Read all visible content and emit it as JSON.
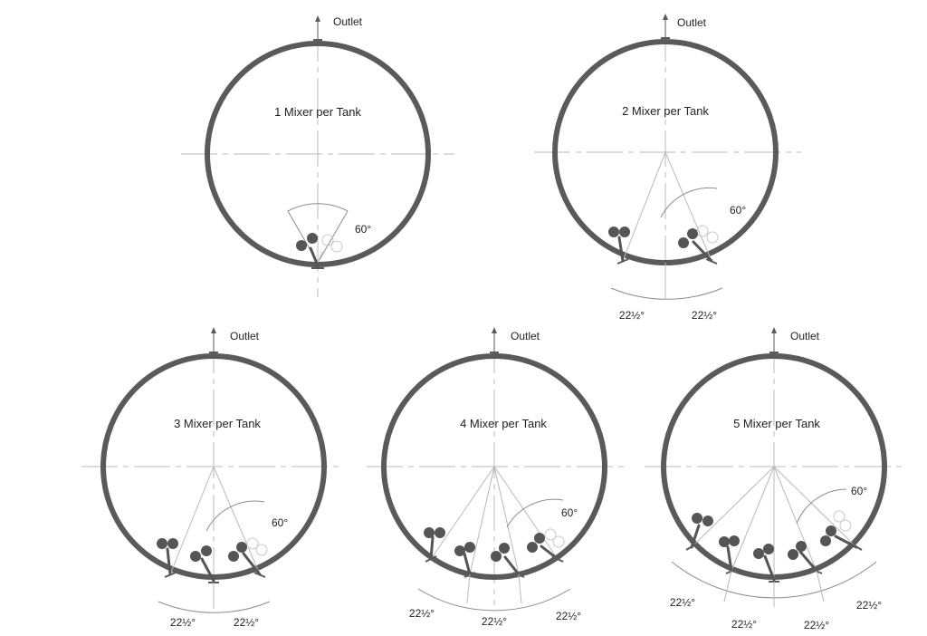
{
  "colors": {
    "tank": "#5a5a5a",
    "construction": "#b9b9b9",
    "arc": "#8c8c8c",
    "mixer": "#555555",
    "ghost": "#c8c8c8",
    "text": "#222222"
  },
  "tanks": [
    {
      "title": "1 Mixer per Tank",
      "outlet_label": "Outlet",
      "swing_label": "60°",
      "spacing_labels": []
    },
    {
      "title": "2 Mixer per Tank",
      "outlet_label": "Outlet",
      "swing_label": "60°",
      "spacing_labels": [
        "22½°",
        "22½°"
      ]
    },
    {
      "title": "3 Mixer per Tank",
      "outlet_label": "Outlet",
      "swing_label": "60°",
      "spacing_labels": [
        "22½°",
        "22½°"
      ]
    },
    {
      "title": "4 Mixer per Tank",
      "outlet_label": "Outlet",
      "swing_label": "60°",
      "spacing_labels": [
        "22½°",
        "22½°",
        "22½°"
      ]
    },
    {
      "title": "5 Mixer per Tank",
      "outlet_label": "Outlet",
      "swing_label": "60°",
      "spacing_labels": [
        "22½°",
        "22½°",
        "22½°",
        "22½°"
      ]
    }
  ]
}
